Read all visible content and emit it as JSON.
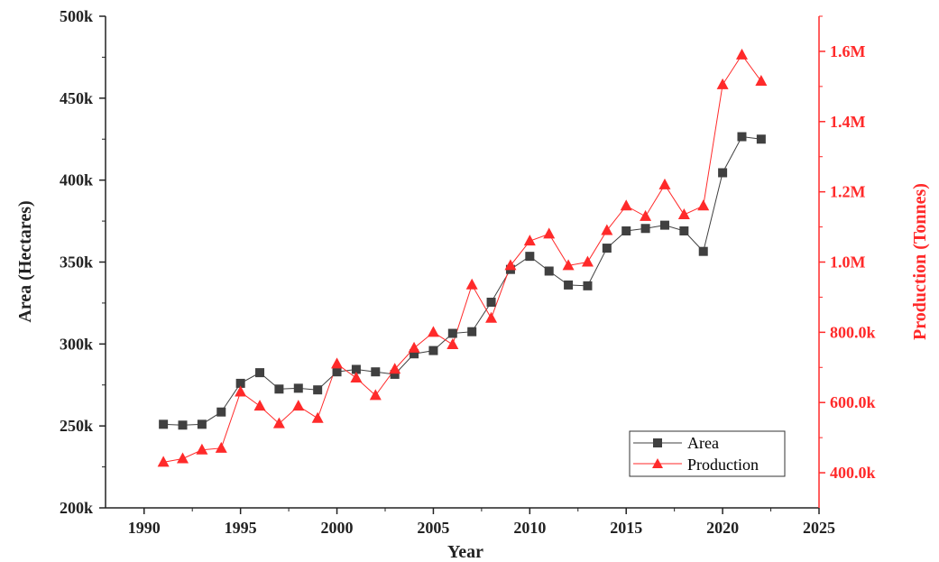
{
  "chart_data": {
    "type": "line",
    "xlabel": "Year",
    "ylabel_left": "Area (Hectares)",
    "ylabel_right": "Production (Tonnes)",
    "xlim": [
      1988,
      2025
    ],
    "ylim_left": [
      200000,
      500000
    ],
    "ylim_right": [
      300000,
      1700000
    ],
    "x_ticks": [
      "1990",
      "1995",
      "2000",
      "2005",
      "2010",
      "2015",
      "2020",
      "2025"
    ],
    "y_ticks_left": [
      "200k",
      "250k",
      "300k",
      "350k",
      "400k",
      "450k",
      "500k"
    ],
    "y_ticks_right": [
      "400.0k",
      "600.0k",
      "800.0k",
      "1.0M",
      "1.2M",
      "1.4M",
      "1.6M"
    ],
    "legend_position": "bottom-right",
    "grid": false,
    "colors": {
      "area": "#404040",
      "production": "#ff2a2a",
      "right_axis": "#ff2a2a"
    },
    "x": [
      1991,
      1992,
      1993,
      1994,
      1995,
      1996,
      1997,
      1998,
      1999,
      2000,
      2001,
      2002,
      2003,
      2004,
      2005,
      2006,
      2007,
      2008,
      2009,
      2010,
      2011,
      2012,
      2013,
      2014,
      2015,
      2016,
      2017,
      2018,
      2019,
      2020,
      2021,
      2022
    ],
    "series": [
      {
        "name": "Area",
        "axis": "left",
        "marker": "square",
        "values": [
          251000,
          250500,
          251000,
          258500,
          276000,
          282500,
          272500,
          273000,
          272000,
          283000,
          284500,
          283000,
          281500,
          294000,
          296000,
          306500,
          307500,
          325500,
          345500,
          353500,
          344500,
          336000,
          335500,
          358500,
          369000,
          370500,
          372500,
          369000,
          356500,
          404500,
          426500,
          425000
        ]
      },
      {
        "name": "Production",
        "axis": "right",
        "marker": "triangle",
        "values": [
          430000,
          440000,
          465000,
          470000,
          630000,
          590000,
          540000,
          590000,
          555000,
          710000,
          670000,
          620000,
          695000,
          755000,
          800000,
          765000,
          935000,
          840000,
          990000,
          1060000,
          1080000,
          990000,
          1000000,
          1090000,
          1160000,
          1130000,
          1220000,
          1135000,
          1160000,
          1505000,
          1590000,
          1515000
        ]
      }
    ]
  }
}
